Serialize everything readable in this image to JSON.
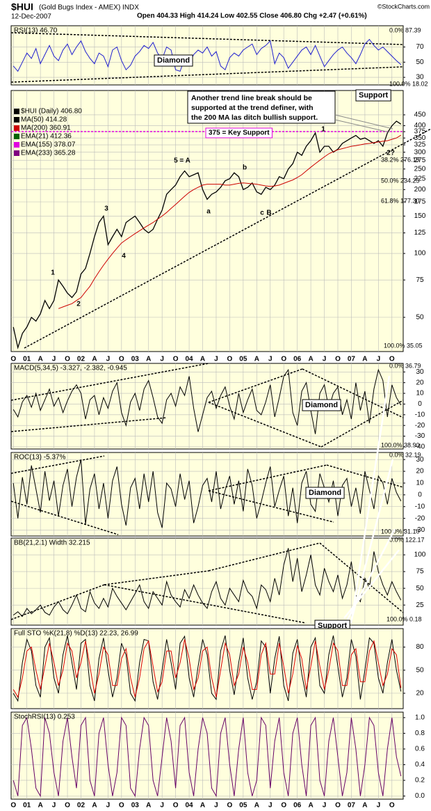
{
  "header": {
    "symbol": "$HUI",
    "subtitle": "(Gold Bugs Index - AMEX) INDX",
    "date": "12-Dec-2007",
    "quote": "Open 404.33 High 414.24 Low 402.55 Close 406.80 Chg +2.47 (+0.61%)",
    "credit": "©StockCharts.com"
  },
  "x_axis_labels": [
    "O",
    "01",
    "A",
    "J",
    "O",
    "02",
    "A",
    "J",
    "O",
    "03",
    "A",
    "J",
    "O",
    "04",
    "A",
    "J",
    "O",
    "05",
    "A",
    "J",
    "O",
    "06",
    "A",
    "J",
    "O",
    "07",
    "A",
    "J",
    "O"
  ],
  "chart_data": [
    {
      "type": "line",
      "label": "RSI(13) 46.70",
      "ylim": [
        20,
        98
      ],
      "yticks": [
        30,
        50,
        70
      ],
      "series": [
        {
          "name": "RSI(13)",
          "color": "#1f1fd0",
          "values": [
            45,
            38,
            50,
            62,
            55,
            68,
            48,
            60,
            72,
            58,
            52,
            66,
            74,
            60,
            70,
            78,
            64,
            55,
            48,
            62,
            58,
            44,
            66,
            70,
            52,
            40,
            46,
            58,
            64,
            72,
            68,
            76,
            62,
            54,
            70,
            66,
            40,
            38,
            55,
            48,
            60,
            66,
            62,
            70,
            58,
            64,
            45,
            40,
            56,
            62,
            58,
            66,
            70,
            74,
            60,
            68,
            72,
            78,
            48,
            62,
            56,
            42,
            50,
            58,
            66,
            70,
            60,
            72,
            58,
            44,
            52,
            60,
            66,
            70,
            62,
            56,
            48,
            60,
            74,
            80,
            72,
            66,
            70,
            64,
            58,
            52,
            46.7
          ]
        }
      ],
      "annotations": [
        "0.0% 87.39",
        "Diamond",
        "100.0% 18.02"
      ]
    },
    {
      "type": "line",
      "log": true,
      "ylim": [
        34.5,
        586
      ],
      "yticks": [
        50,
        75,
        100,
        125,
        150,
        175,
        200,
        225,
        250,
        275,
        300,
        325,
        350,
        375,
        400,
        450
      ],
      "series": [
        {
          "name": "$HUI (Daily) 406.80",
          "color": "#000000",
          "values": [
            45,
            36,
            42,
            45,
            50,
            48,
            52,
            60,
            55,
            60,
            75,
            70,
            65,
            62,
            66,
            80,
            85,
            100,
            120,
            140,
            150,
            110,
            120,
            130,
            120,
            140,
            145,
            150,
            140,
            130,
            125,
            130,
            145,
            160,
            190,
            200,
            210,
            230,
            245,
            230,
            235,
            240,
            200,
            180,
            190,
            195,
            205,
            220,
            225,
            240,
            230,
            200,
            205,
            215,
            195,
            190,
            205,
            200,
            210,
            230,
            225,
            250,
            265,
            300,
            290,
            320,
            340,
            370,
            300,
            320,
            320,
            300,
            310,
            330,
            340,
            350,
            360,
            345,
            350,
            340,
            330,
            340,
            320,
            370,
            400,
            420,
            406.8
          ]
        },
        {
          "name": "MA(200) 360.91",
          "color": "#cc0000",
          "values": [
            null,
            null,
            null,
            null,
            null,
            null,
            null,
            null,
            null,
            null,
            55,
            56,
            57,
            58,
            60,
            62,
            66,
            70,
            76,
            82,
            88,
            94,
            100,
            106,
            112,
            116,
            120,
            124,
            128,
            132,
            136,
            140,
            145,
            150,
            156,
            163,
            170,
            178,
            186,
            194,
            200,
            205,
            210,
            212,
            212,
            212,
            212,
            210,
            210,
            212,
            214,
            215,
            214,
            213,
            212,
            210,
            208,
            207,
            208,
            210,
            214,
            218,
            222,
            228,
            235,
            245,
            255,
            265,
            275,
            285,
            295,
            302,
            308,
            312,
            316,
            320,
            322,
            325,
            328,
            330,
            333,
            335,
            338,
            340,
            345,
            350,
            360.91
          ]
        }
      ],
      "overlays": [
        {
          "name": "MA(50) 414.28",
          "color": "#000000"
        },
        {
          "name": "EMA(21) 412.36",
          "color": "#006400"
        },
        {
          "name": "EMA(155) 378.07",
          "color": "#e000e0"
        },
        {
          "name": "EMA(233) 365.28",
          "color": "#800080"
        }
      ],
      "callout": [
        "Another trend line break should be",
        "supported at the trend definer, with",
        "the 200 MA las ditch bullish support."
      ],
      "annotations": [
        "375 = Key Support",
        "Support",
        "5 = A",
        "1",
        "2",
        "3",
        "4",
        "a",
        "b",
        "c",
        "B",
        "1",
        "2?",
        "38.2% 276.19",
        "50.0% 234.25",
        "61.8% 177.30",
        "100.0% 35.05"
      ]
    },
    {
      "type": "line",
      "label": "MACD(5,34,5) -3.327, -2.382, -0.945",
      "ylim": [
        -42,
        38
      ],
      "yticks": [
        30,
        20,
        10,
        0,
        -10,
        -20,
        -30,
        -40
      ],
      "series": [
        {
          "name": "MACD",
          "color": "#000000",
          "values": [
            -5,
            -12,
            2,
            8,
            -3,
            10,
            -6,
            4,
            14,
            -2,
            6,
            -8,
            3,
            12,
            18,
            10,
            -14,
            4,
            8,
            -10,
            6,
            -4,
            12,
            20,
            -8,
            -20,
            2,
            10,
            -6,
            14,
            22,
            6,
            -12,
            -18,
            4,
            10,
            -2,
            16,
            8,
            26,
            -4,
            -26,
            -10,
            6,
            12,
            -4,
            8,
            16,
            -2,
            -14,
            10,
            -8,
            4,
            14,
            -6,
            -10,
            2,
            18,
            -12,
            6,
            26,
            32,
            -8,
            -20,
            12,
            20,
            -6,
            -28,
            10,
            18,
            -4,
            10,
            16,
            -10,
            4,
            -14,
            20,
            -6,
            12,
            -18,
            14,
            32,
            22,
            -12,
            18,
            6,
            -0.945
          ]
        }
      ],
      "annotations": [
        "0.0% 36.79",
        "Diamond",
        "100.0% 38.90"
      ]
    },
    {
      "type": "line",
      "label": "ROC(13) -5.37%",
      "ylim": [
        -35,
        36
      ],
      "yticks": [
        30,
        20,
        10,
        0,
        -10,
        -20,
        -30
      ],
      "series": [
        {
          "name": "ROC",
          "color": "#000000",
          "values": [
            10,
            -20,
            15,
            -8,
            25,
            5,
            -15,
            20,
            -5,
            12,
            -18,
            8,
            22,
            -10,
            15,
            30,
            -25,
            5,
            18,
            -12,
            10,
            -20,
            12,
            24,
            -8,
            -26,
            6,
            14,
            -12,
            18,
            -6,
            20,
            -15,
            -28,
            10,
            5,
            -10,
            18,
            -4,
            12,
            -24,
            -10,
            8,
            14,
            -6,
            20,
            -12,
            4,
            16,
            -8,
            12,
            -14,
            22,
            8,
            -20,
            -6,
            10,
            24,
            -10,
            4,
            16,
            -18,
            6,
            -24,
            10,
            20,
            -8,
            -14,
            18,
            6,
            -6,
            12,
            -18,
            8,
            14,
            -10,
            6,
            -16,
            20,
            4,
            -12,
            16,
            10,
            -8,
            14,
            2,
            -5.37
          ]
        }
      ],
      "annotations": [
        "0.0% 32.19",
        "Diamond",
        "100.0% 31.10"
      ]
    },
    {
      "type": "line",
      "label": "BB(21,2.1) Width 32.215",
      "ylim": [
        -5,
        125
      ],
      "yticks": [
        25,
        50,
        75,
        100
      ],
      "series": [
        {
          "name": "BB Width",
          "color": "#000000",
          "values": [
            10,
            15,
            8,
            20,
            12,
            18,
            25,
            14,
            10,
            22,
            30,
            18,
            12,
            25,
            40,
            20,
            15,
            45,
            28,
            20,
            35,
            22,
            50,
            38,
            28,
            18,
            30,
            42,
            55,
            30,
            20,
            45,
            35,
            25,
            60,
            40,
            30,
            22,
            48,
            35,
            55,
            40,
            28,
            20,
            45,
            60,
            35,
            25,
            50,
            40,
            30,
            62,
            45,
            38,
            20,
            55,
            48,
            30,
            65,
            40,
            85,
            110,
            60,
            95,
            45,
            70,
            100,
            55,
            40,
            80,
            60,
            45,
            70,
            35,
            55,
            90,
            40,
            30,
            65,
            50,
            105,
            75,
            55,
            40,
            60,
            45,
            32.215
          ]
        }
      ],
      "annotations": [
        "0.0% 122.17",
        "Support",
        "100.0% 0.18"
      ]
    },
    {
      "type": "line",
      "label": "Full STO %K(21,8) %D(13) 22.23, 26.99",
      "ylim": [
        0,
        104
      ],
      "yticks": [
        20,
        50,
        80
      ],
      "series": [
        {
          "name": "%K",
          "color": "#000000",
          "values": [
            20,
            10,
            60,
            90,
            75,
            30,
            15,
            80,
            92,
            40,
            20,
            70,
            95,
            60,
            25,
            85,
            90,
            30,
            10,
            65,
            92,
            50,
            15,
            40,
            85,
            70,
            20,
            10,
            60,
            90,
            88,
            35,
            12,
            50,
            90,
            60,
            25,
            85,
            94,
            40,
            15,
            55,
            90,
            70,
            20,
            12,
            75,
            95,
            50,
            18,
            60,
            92,
            40,
            12,
            35,
            88,
            80,
            20,
            65,
            94,
            30,
            10,
            72,
            90,
            45,
            15,
            80,
            92,
            30,
            20,
            70,
            95,
            55,
            15,
            40,
            90,
            68,
            12,
            50,
            92,
            85,
            40,
            20,
            60,
            90,
            50,
            22.23
          ]
        },
        {
          "name": "%D",
          "color": "#dd0000",
          "values": [
            25,
            15,
            40,
            75,
            80,
            50,
            25,
            55,
            85,
            60,
            30,
            50,
            85,
            75,
            40,
            60,
            88,
            55,
            20,
            45,
            80,
            70,
            30,
            30,
            65,
            78,
            40,
            15,
            40,
            78,
            88,
            55,
            22,
            35,
            75,
            75,
            40,
            60,
            90,
            65,
            25,
            40,
            75,
            80,
            40,
            15,
            50,
            85,
            70,
            30,
            45,
            80,
            60,
            25,
            25,
            70,
            85,
            45,
            45,
            85,
            55,
            20,
            45,
            82,
            65,
            25,
            55,
            88,
            55,
            25,
            50,
            85,
            75,
            30,
            30,
            70,
            78,
            35,
            35,
            75,
            88,
            60,
            30,
            45,
            78,
            70,
            26.99
          ]
        }
      ],
      "annotations": []
    },
    {
      "type": "line",
      "label": "StochRSI(13) 0.253",
      "ylim": [
        -0.04,
        1.07
      ],
      "yticks": [
        {
          "value": 0,
          "label": "0.0"
        },
        0.2,
        0.4,
        0.6,
        0.8,
        {
          "value": 1,
          "label": "1.0"
        }
      ],
      "series": [
        {
          "name": "StochRSI",
          "color": "#660066",
          "values": [
            0.2,
            0,
            0.9,
            1,
            0.6,
            0.1,
            0,
            1,
            0.8,
            0.3,
            0,
            0.7,
            1,
            0.5,
            0.1,
            0.9,
            1,
            0.2,
            0,
            0.8,
            1,
            0.4,
            0,
            0.3,
            1,
            0.9,
            0.1,
            0,
            0.6,
            1,
            0.9,
            0.2,
            0,
            0.5,
            1,
            0.7,
            0.1,
            0.9,
            1,
            0.3,
            0,
            0.6,
            1,
            0.8,
            0.1,
            0,
            0.8,
            1,
            0.4,
            0,
            0.6,
            1,
            0.3,
            0,
            0.2,
            1,
            0.9,
            0.1,
            0.7,
            1,
            0.3,
            0,
            0.8,
            1,
            0.4,
            0,
            0.9,
            1,
            0.2,
            0,
            0.7,
            1,
            0.5,
            0,
            0.3,
            1,
            0.6,
            0,
            0.4,
            1,
            0.9,
            0.3,
            0,
            0.6,
            1,
            0.5,
            0.253
          ]
        }
      ],
      "annotations": []
    }
  ]
}
